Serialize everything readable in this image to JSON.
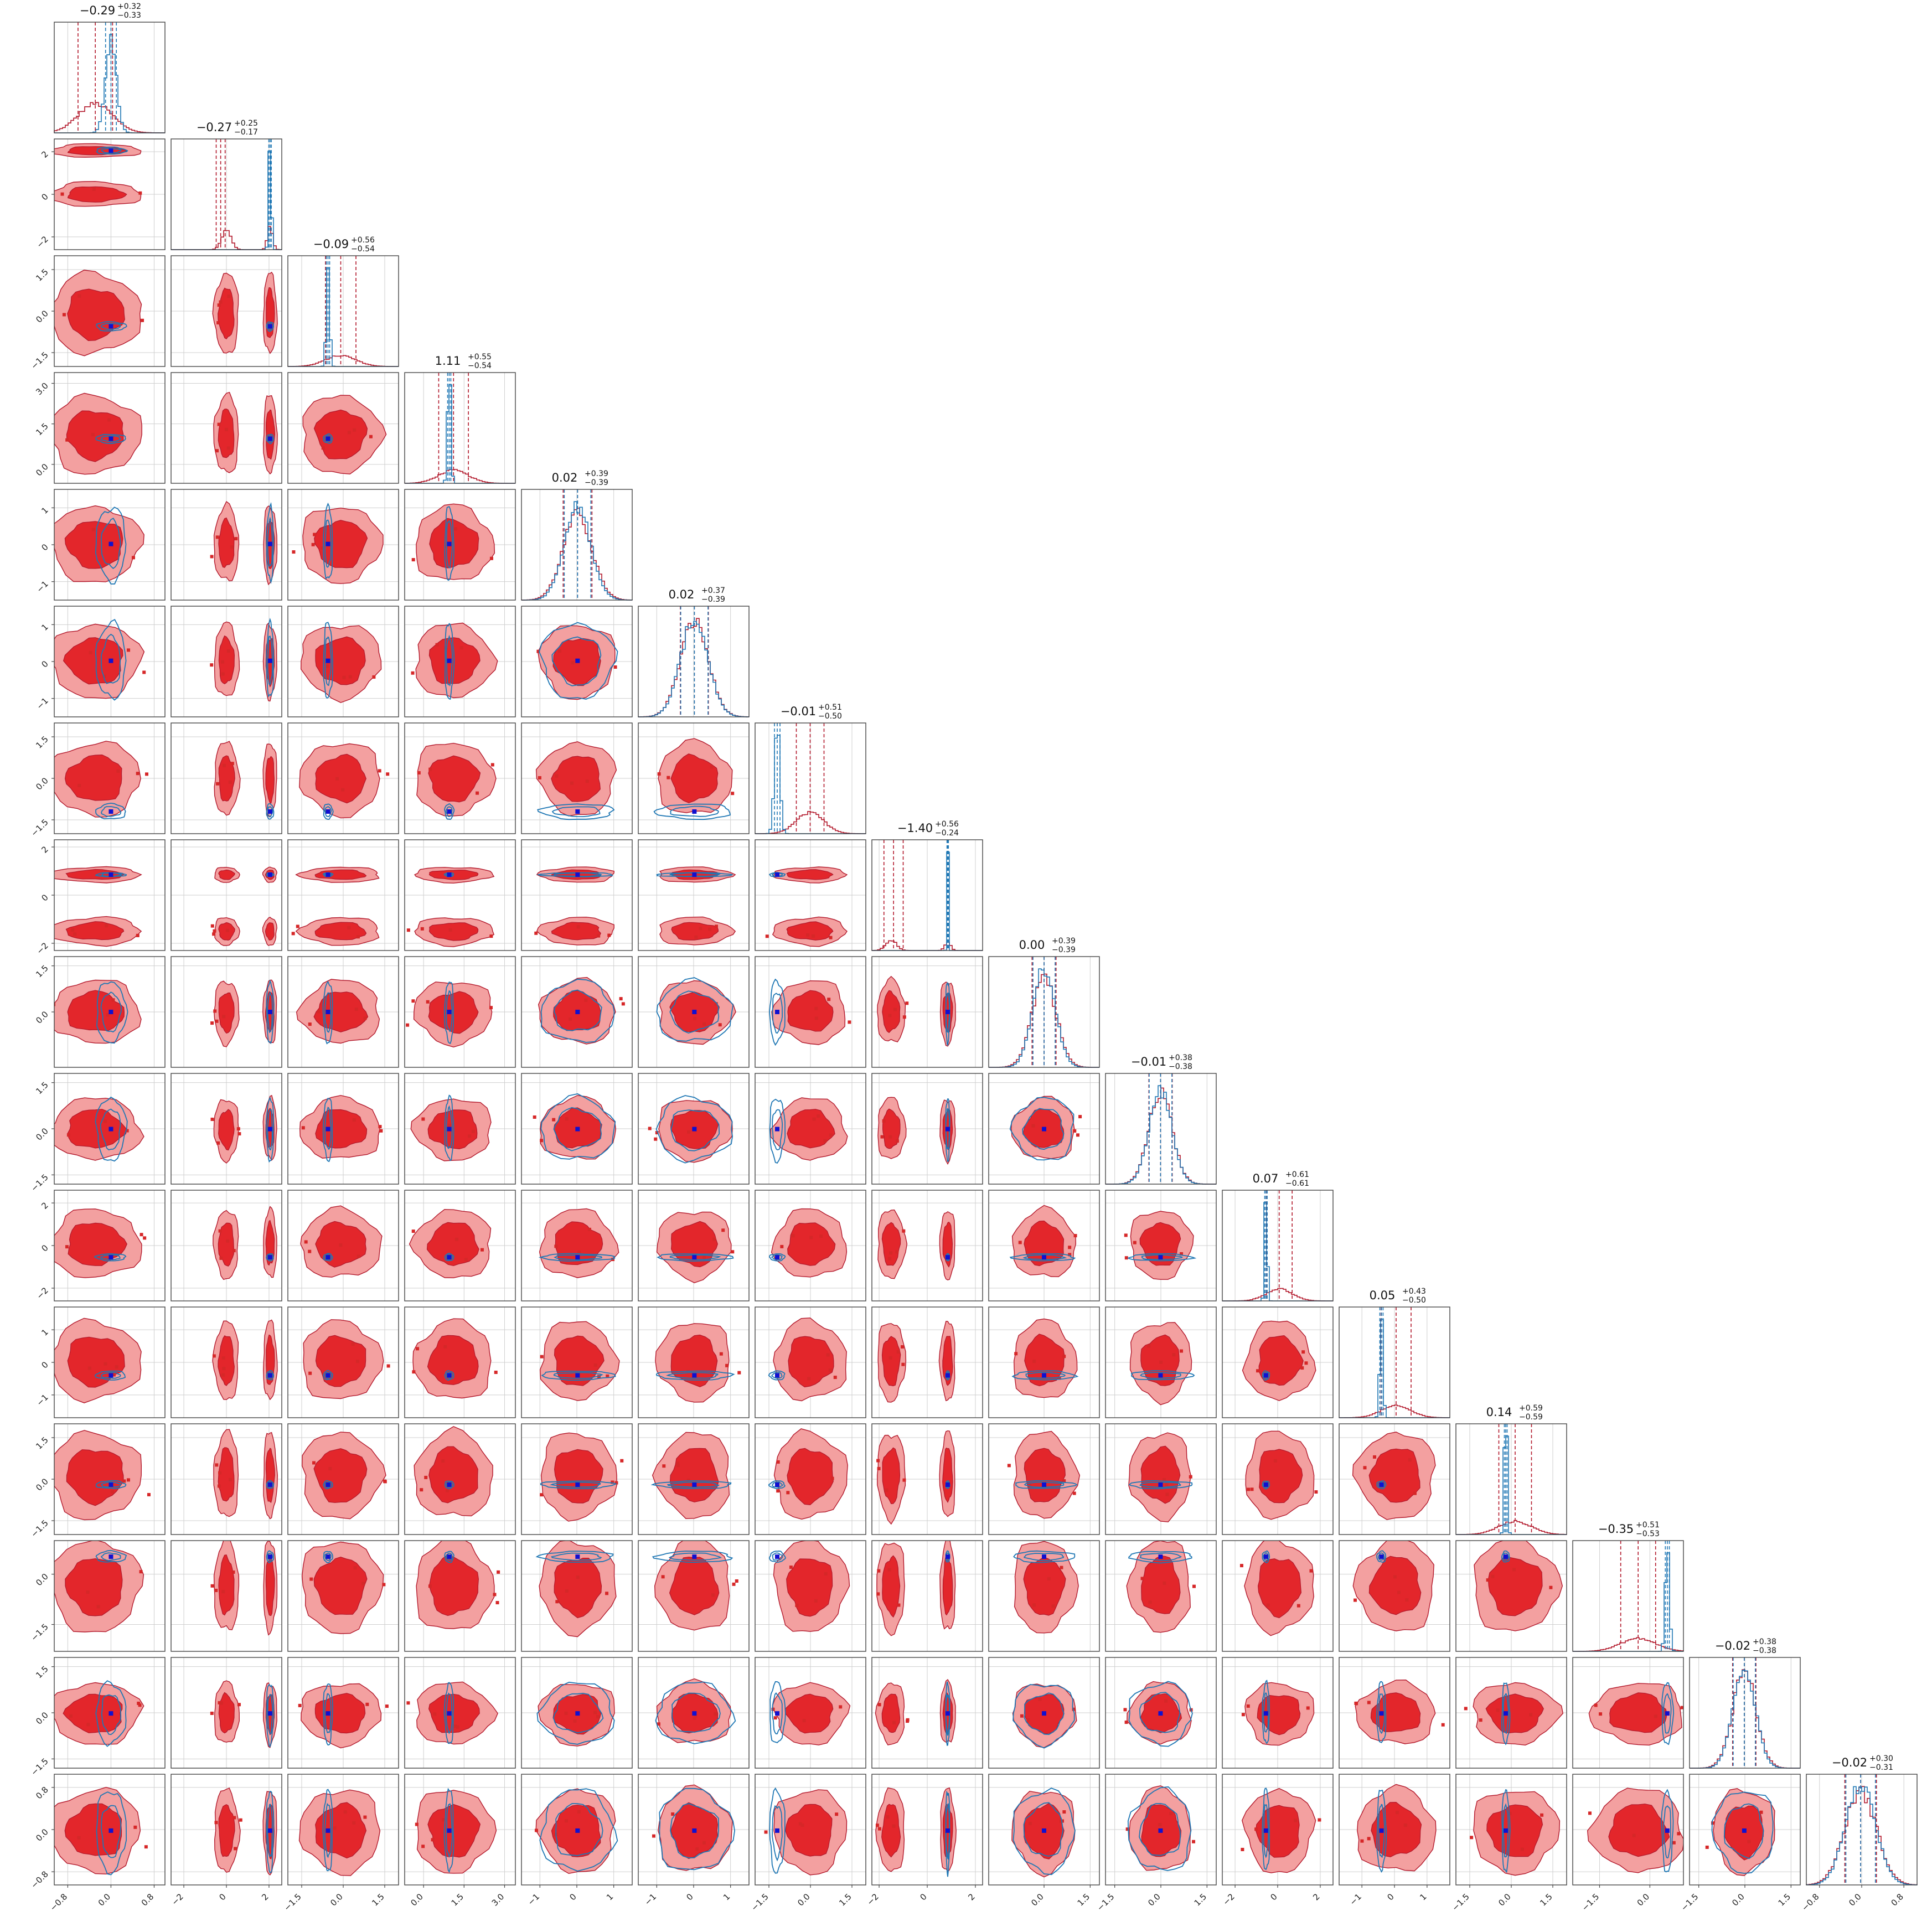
{
  "chart_data": {
    "type": "corner",
    "n_params": 16,
    "grid": true,
    "series": [
      {
        "name": "",
        "color": "#d62728",
        "fill_light": "#f3a0a0",
        "fill_dark": "#e3262b",
        "line": "#b2182b",
        "median": [
          -0.29,
          -0.27,
          -0.09,
          1.11,
          0.02,
          0.02,
          -0.01,
          -1.4,
          0.0,
          -0.01,
          0.07,
          0.05,
          0.14,
          -0.35,
          -0.02,
          -0.02
        ],
        "sigma": [
          0.32,
          0.21,
          0.55,
          0.55,
          0.39,
          0.38,
          0.5,
          0.4,
          0.39,
          0.38,
          0.61,
          0.46,
          0.59,
          0.52,
          0.38,
          0.3
        ],
        "bimodal": [
          {
            "param": 1,
            "modes": [
              0.0,
              2.05
            ],
            "weights": [
              0.6,
              0.4
            ]
          },
          {
            "param": 7,
            "modes": [
              -1.5,
              0.85
            ],
            "weights": [
              0.7,
              0.3
            ]
          }
        ]
      },
      {
        "name": "",
        "color": "#1f77b4",
        "line": "#1f77b4",
        "median": [
          0.0,
          2.05,
          -0.55,
          0.95,
          0.02,
          0.02,
          -1.2,
          0.85,
          0.0,
          -0.01,
          -0.55,
          -0.4,
          -0.2,
          0.52,
          -0.02,
          -0.02
        ],
        "sigma": [
          0.1,
          0.06,
          0.06,
          0.06,
          0.36,
          0.37,
          0.1,
          0.03,
          0.36,
          0.37,
          0.06,
          0.05,
          0.05,
          0.06,
          0.36,
          0.28
        ]
      }
    ],
    "titles": [
      {
        "value": "−0.29",
        "plus": "+0.32",
        "minus": "−0.33"
      },
      {
        "value": "−0.27",
        "plus": "+0.25",
        "minus": "−0.17"
      },
      {
        "value": "−0.09",
        "plus": "+0.56",
        "minus": "−0.54"
      },
      {
        "value": "1.11",
        "plus": "+0.55",
        "minus": "−0.54"
      },
      {
        "value": "0.02",
        "plus": "+0.39",
        "minus": "−0.39"
      },
      {
        "value": "0.02",
        "plus": "+0.37",
        "minus": "−0.39"
      },
      {
        "value": "−0.01",
        "plus": "+0.51",
        "minus": "−0.50"
      },
      {
        "value": "−1.40",
        "plus": "+0.56",
        "minus": "−0.24"
      },
      {
        "value": "0.00",
        "plus": "+0.39",
        "minus": "−0.39"
      },
      {
        "value": "−0.01",
        "plus": "+0.38",
        "minus": "−0.38"
      },
      {
        "value": "0.07",
        "plus": "+0.61",
        "minus": "−0.61"
      },
      {
        "value": "0.05",
        "plus": "+0.43",
        "minus": "−0.50"
      },
      {
        "value": "0.14",
        "plus": "+0.59",
        "minus": "−0.59"
      },
      {
        "value": "−0.35",
        "plus": "+0.51",
        "minus": "−0.53"
      },
      {
        "value": "−0.02",
        "plus": "+0.38",
        "minus": "−0.38"
      },
      {
        "value": "−0.02",
        "plus": "+0.30",
        "minus": "−0.31"
      }
    ],
    "axes": [
      {
        "range": [
          -1.05,
          1.0
        ],
        "ticks": [
          -0.8,
          0.0,
          0.8
        ],
        "labels": [
          "−0.8",
          "0.0",
          "0.8"
        ]
      },
      {
        "range": [
          -2.6,
          2.6
        ],
        "ticks": [
          -2,
          0,
          2
        ],
        "labels": [
          "−2",
          "0",
          "2"
        ]
      },
      {
        "range": [
          -2.0,
          2.0
        ],
        "ticks": [
          -1.5,
          0.0,
          1.5
        ],
        "labels": [
          "−1.5",
          "0.0",
          "1.5"
        ]
      },
      {
        "range": [
          -0.7,
          3.4
        ],
        "ticks": [
          0.0,
          1.5,
          3.0
        ],
        "labels": [
          "0.0",
          "1.5",
          "3.0"
        ]
      },
      {
        "range": [
          -1.5,
          1.5
        ],
        "ticks": [
          -1,
          0,
          1
        ],
        "labels": [
          "−1",
          "0",
          "1"
        ]
      },
      {
        "range": [
          -1.5,
          1.5
        ],
        "ticks": [
          -1,
          0,
          1
        ],
        "labels": [
          "−1",
          "0",
          "1"
        ]
      },
      {
        "range": [
          -2.0,
          2.0
        ],
        "ticks": [
          -1.5,
          0.0,
          1.5
        ],
        "labels": [
          "−1.5",
          "0.0",
          "1.5"
        ]
      },
      {
        "range": [
          -2.3,
          2.3
        ],
        "ticks": [
          -2,
          0,
          2
        ],
        "labels": [
          "−2",
          "0",
          "2"
        ]
      },
      {
        "range": [
          -1.8,
          1.8
        ],
        "ticks": [
          0.0,
          1.5
        ],
        "labels": [
          "0.0",
          "1.5"
        ]
      },
      {
        "range": [
          -1.8,
          1.8
        ],
        "ticks": [
          -1.5,
          0.0,
          1.5
        ],
        "labels": [
          "−1.5",
          "0.0",
          "1.5"
        ]
      },
      {
        "range": [
          -2.6,
          2.6
        ],
        "ticks": [
          -2,
          0,
          2
        ],
        "labels": [
          "−2",
          "0",
          "2"
        ]
      },
      {
        "range": [
          -1.7,
          1.7
        ],
        "ticks": [
          -1,
          0,
          1
        ],
        "labels": [
          "−1",
          "0",
          "1"
        ]
      },
      {
        "range": [
          -2.0,
          2.0
        ],
        "ticks": [
          -1.5,
          0.0,
          1.5
        ],
        "labels": [
          "−1.5",
          "0.0",
          "1.5"
        ]
      },
      {
        "range": [
          -2.3,
          1.0
        ],
        "ticks": [
          -1.5,
          0.0
        ],
        "labels": [
          "−1.5",
          "0.0"
        ]
      },
      {
        "range": [
          -1.8,
          1.8
        ],
        "ticks": [
          -1.5,
          0.0,
          1.5
        ],
        "labels": [
          "−1.5",
          "0.0",
          "1.5"
        ]
      },
      {
        "range": [
          -1.05,
          1.05
        ],
        "ticks": [
          -0.8,
          0.0,
          0.8
        ],
        "labels": [
          "−0.8",
          "0.0",
          "0.8"
        ]
      }
    ],
    "y_axes": [
      null,
      {
        "ticks": [
          -2,
          0,
          2
        ],
        "labels": [
          "−2",
          "0",
          "2"
        ]
      },
      {
        "ticks": [
          -1.5,
          0.0,
          1.5
        ],
        "labels": [
          "−1.5",
          "0.0",
          "1.5"
        ]
      },
      {
        "ticks": [
          0.0,
          1.5,
          3.0
        ],
        "labels": [
          "0.0",
          "1.5",
          "3.0"
        ]
      },
      {
        "ticks": [
          -1,
          0,
          1
        ],
        "labels": [
          "−1",
          "0",
          "1"
        ]
      },
      {
        "ticks": [
          -1,
          0,
          1
        ],
        "labels": [
          "−1",
          "0",
          "1"
        ]
      },
      {
        "ticks": [
          -1.5,
          0.0,
          1.5
        ],
        "labels": [
          "−1.5",
          "0.0",
          "1.5"
        ]
      },
      {
        "ticks": [
          -2,
          0,
          2
        ],
        "labels": [
          "−2",
          "0",
          "2"
        ]
      },
      {
        "ticks": [
          0.0,
          1.5
        ],
        "labels": [
          "0.0",
          "1.5"
        ]
      },
      {
        "ticks": [
          -1.5,
          0.0,
          1.5
        ],
        "labels": [
          "−1.5",
          "0.0",
          "1.5"
        ]
      },
      {
        "ticks": [
          -2,
          0,
          2
        ],
        "labels": [
          "−2",
          "0",
          "2"
        ]
      },
      {
        "ticks": [
          -1,
          0,
          1
        ],
        "labels": [
          "−1",
          "0",
          "1"
        ]
      },
      {
        "ticks": [
          -1.5,
          0.0,
          1.5
        ],
        "labels": [
          "−1.5",
          "0.0",
          "1.5"
        ]
      },
      {
        "ticks": [
          -1.5,
          0.0
        ],
        "labels": [
          "−1.5",
          "0.0"
        ]
      },
      {
        "ticks": [
          -1.5,
          0.0,
          1.5
        ],
        "labels": [
          "−1.5",
          "0.0",
          "1.5"
        ]
      },
      {
        "ticks": [
          -0.8,
          0.0,
          0.8
        ],
        "labels": [
          "−0.8",
          "0.0",
          "0.8"
        ]
      }
    ]
  }
}
